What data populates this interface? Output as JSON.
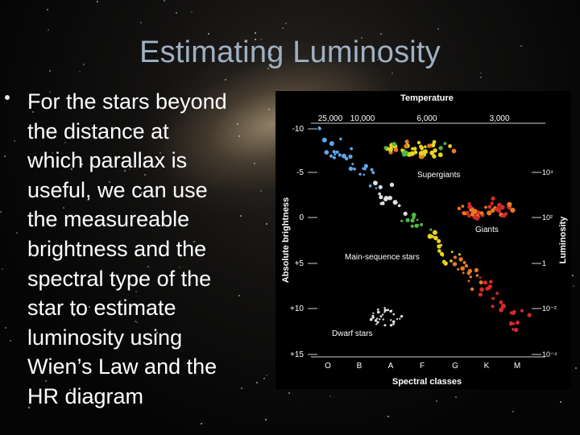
{
  "slide": {
    "title": "Estimating Luminosity",
    "bullet": "For the stars beyond\nthe distance at\nwhich parallax is\nuseful, we can use\nthe measureable\nbrightness and the\nspectral type of the\nstar to estimate\nluminosity using\nWien’s Law and the\nHR diagram"
  },
  "diagram": {
    "top_label": "Temperature",
    "temperature_ticks": [
      "25,000",
      "10,000",
      "6,000",
      "3,000"
    ],
    "left_axis_label": "Absolute brightness",
    "left_ticks": [
      "-10",
      "-5",
      "0",
      "+5",
      "+10",
      "+15"
    ],
    "right_axis_label": "Luminosity",
    "right_ticks": [
      "10⁴",
      "10²",
      "1",
      "10⁻²",
      "10⁻⁴"
    ],
    "bottom_label": "Spectral classes",
    "spectral_classes": [
      "O",
      "B",
      "A",
      "F",
      "G",
      "K",
      "M"
    ],
    "region_labels": {
      "supergiants": "Supergiants",
      "giants": "Giants",
      "main_sequence": "Main-sequence stars",
      "dwarfs": "Dwarf stars"
    },
    "colors": {
      "blue": "#5fa8e8",
      "white": "#e0e0e0",
      "green": "#4fb845",
      "yellow": "#e8d420",
      "orange": "#e87a20",
      "red": "#d42a2a"
    }
  }
}
